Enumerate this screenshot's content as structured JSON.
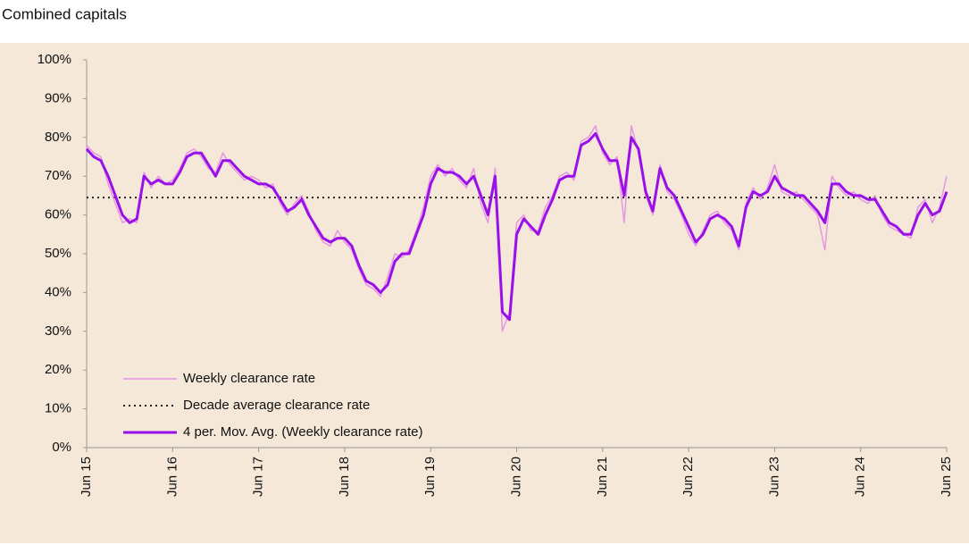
{
  "chart_data": {
    "type": "line",
    "title": "Combined capitals",
    "categories": [
      "Jun 15",
      null,
      null,
      null,
      null,
      null,
      null,
      null,
      null,
      null,
      null,
      null,
      "Jun 16",
      null,
      null,
      null,
      null,
      null,
      null,
      null,
      null,
      null,
      null,
      null,
      "Jun 17",
      null,
      null,
      null,
      null,
      null,
      null,
      null,
      null,
      null,
      null,
      null,
      "Jun 18",
      null,
      null,
      null,
      null,
      null,
      null,
      null,
      null,
      null,
      null,
      null,
      "Jun 19",
      null,
      null,
      null,
      null,
      null,
      null,
      null,
      null,
      null,
      null,
      null,
      "Jun 20",
      null,
      null,
      null,
      null,
      null,
      null,
      null,
      null,
      null,
      null,
      null,
      "Jun 21",
      null,
      null,
      null,
      null,
      null,
      null,
      null,
      null,
      null,
      null,
      null,
      "Jun 22",
      null,
      null,
      null,
      null,
      null,
      null,
      null,
      null,
      null,
      null,
      null,
      "Jun 23",
      null,
      null,
      null,
      null,
      null,
      null,
      null,
      null,
      null,
      null,
      null,
      "Jun 24",
      null,
      null,
      null,
      null,
      null,
      null,
      null,
      null,
      null,
      null,
      null,
      "Jun 25"
    ],
    "series": [
      {
        "name": "Weekly clearance rate",
        "color": "#e596e4",
        "width": 1.5,
        "values": [
          78,
          76,
          75,
          68,
          63,
          58,
          59,
          58,
          71,
          67,
          70,
          68,
          69,
          72,
          76,
          77,
          75,
          72,
          71,
          76,
          73,
          71,
          69,
          70,
          69,
          67,
          68,
          63,
          60,
          63,
          65,
          61,
          56,
          53,
          52,
          56,
          53,
          51,
          46,
          42,
          41,
          39,
          44,
          50,
          49,
          51,
          56,
          62,
          70,
          73,
          70,
          72,
          69,
          67,
          72,
          63,
          58,
          72,
          30,
          35,
          58,
          60,
          56,
          56,
          62,
          65,
          70,
          71,
          69,
          79,
          80,
          83,
          76,
          73,
          75,
          58,
          83,
          76,
          65,
          60,
          73,
          66,
          64,
          60,
          55,
          52,
          56,
          60,
          61,
          58,
          56,
          51,
          63,
          67,
          64,
          67,
          73,
          66,
          65,
          66,
          64,
          62,
          60,
          51,
          70,
          67,
          65,
          66,
          64,
          63,
          65,
          60,
          57,
          56,
          55,
          54,
          62,
          64,
          58,
          62,
          70
        ]
      },
      {
        "name": "4 per. Mov. Avg. (Weekly clearance rate)",
        "color": "#9a10e8",
        "width": 3,
        "values": [
          77,
          75,
          74,
          70,
          65,
          60,
          58,
          59,
          70,
          68,
          69,
          68,
          68,
          71,
          75,
          76,
          76,
          73,
          70,
          74,
          74,
          72,
          70,
          69,
          68,
          68,
          67,
          64,
          61,
          62,
          64,
          60,
          57,
          54,
          53,
          54,
          54,
          52,
          47,
          43,
          42,
          40,
          42,
          48,
          50,
          50,
          55,
          60,
          68,
          72,
          71,
          71,
          70,
          68,
          70,
          65,
          60,
          70,
          35,
          33,
          55,
          59,
          57,
          55,
          60,
          64,
          69,
          70,
          70,
          78,
          79,
          81,
          77,
          74,
          74,
          65,
          80,
          77,
          66,
          61,
          72,
          67,
          65,
          61,
          57,
          53,
          55,
          59,
          60,
          59,
          57,
          52,
          62,
          66,
          65,
          66,
          70,
          67,
          66,
          65,
          65,
          63,
          61,
          58,
          68,
          68,
          66,
          65,
          65,
          64,
          64,
          61,
          58,
          57,
          55,
          55,
          60,
          63,
          60,
          61,
          66
        ]
      }
    ],
    "reference_line": {
      "name": "Decade average clearance rate",
      "value": 64.5,
      "color": "#222222"
    },
    "ylim": [
      0,
      100
    ],
    "yticks": [
      {
        "value": 0,
        "label": "0%"
      },
      {
        "value": 10,
        "label": "10%"
      },
      {
        "value": 20,
        "label": "20%"
      },
      {
        "value": 30,
        "label": "30%"
      },
      {
        "value": 40,
        "label": "40%"
      },
      {
        "value": 50,
        "label": "50%"
      },
      {
        "value": 60,
        "label": "60%"
      },
      {
        "value": 70,
        "label": "70%"
      },
      {
        "value": 80,
        "label": "80%"
      },
      {
        "value": 90,
        "label": "90%"
      },
      {
        "value": 100,
        "label": "100%"
      }
    ]
  }
}
